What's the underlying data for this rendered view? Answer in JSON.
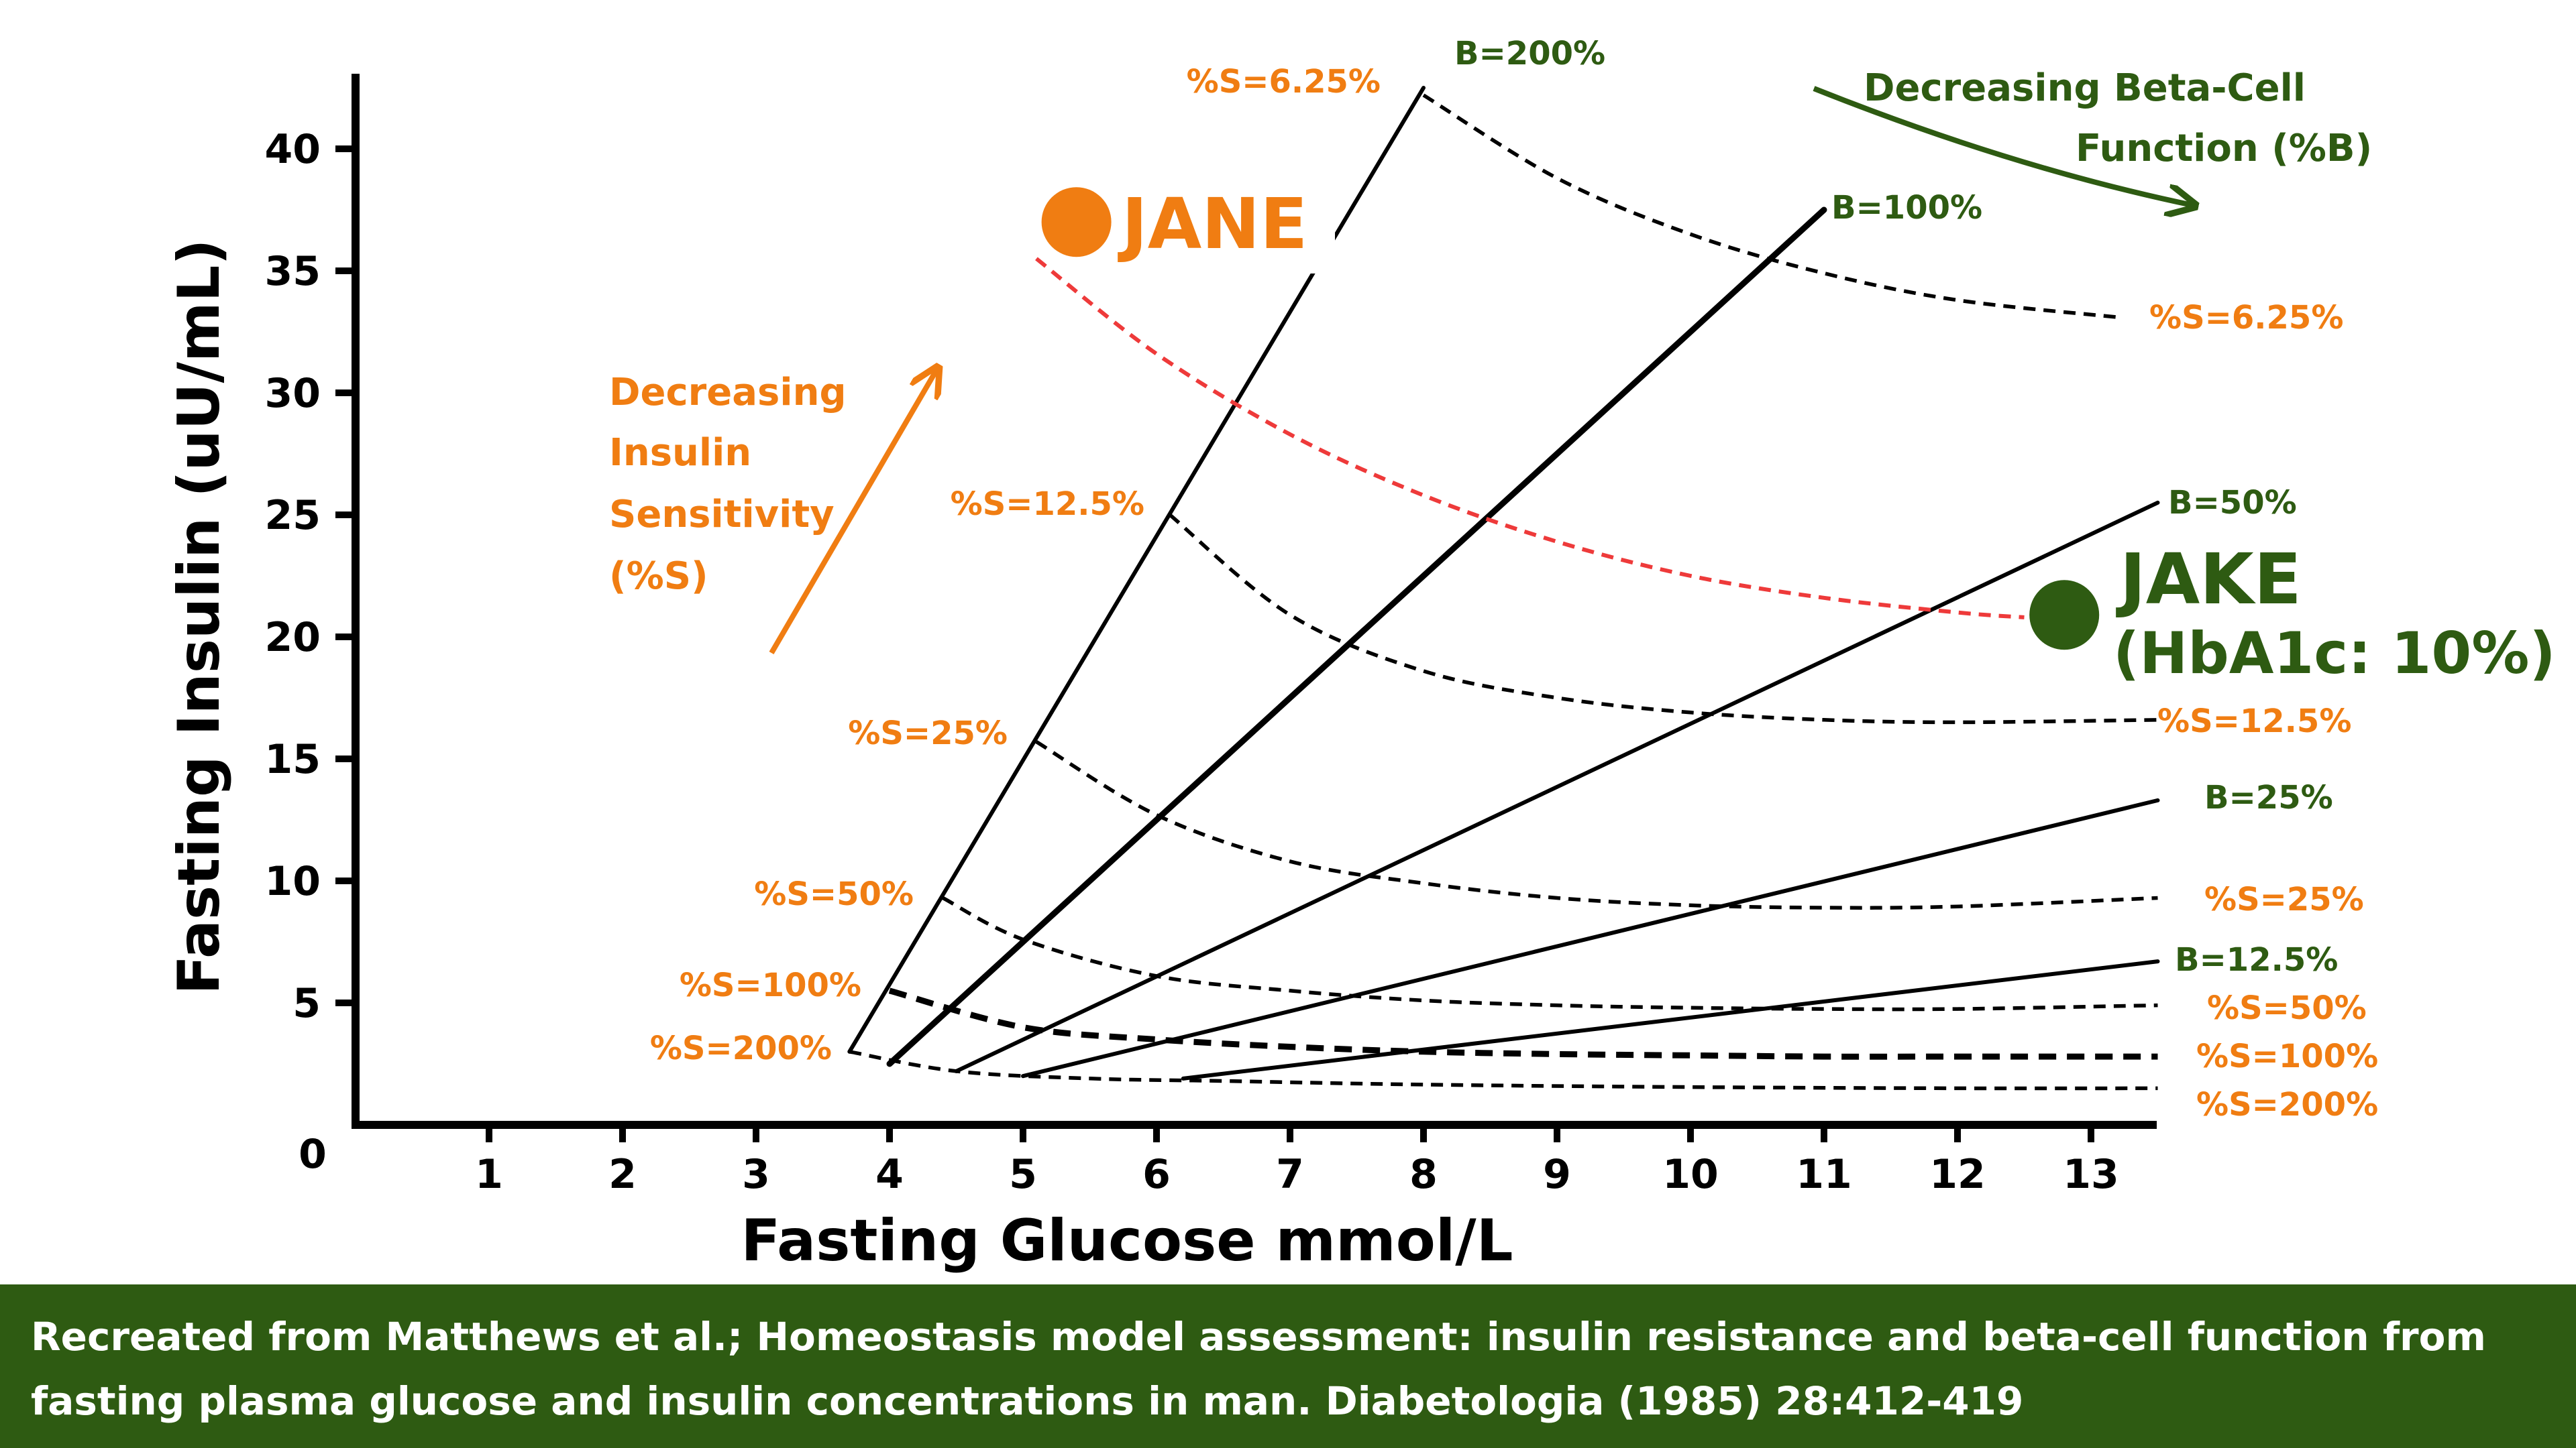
{
  "chart_data": {
    "type": "line",
    "title": "",
    "xlabel": "Fasting Glucose mmol/L",
    "ylabel": "Fasting Insulin (uU/mL)",
    "xlim": [
      0,
      13.5
    ],
    "ylim": [
      0,
      42
    ],
    "x_ticks": [
      1,
      2,
      3,
      4,
      5,
      6,
      7,
      8,
      9,
      10,
      11,
      12,
      13
    ],
    "y_ticks": [
      5,
      10,
      15,
      20,
      25,
      30,
      35,
      40
    ],
    "origin_label": "0",
    "beta_lines": [
      {
        "name": "B=200%",
        "points": [
          [
            3.7,
            3
          ],
          [
            8,
            42.5
          ]
        ]
      },
      {
        "name": "B=100%",
        "points": [
          [
            4,
            2.5
          ],
          [
            11,
            37.5
          ]
        ]
      },
      {
        "name": "B=50%",
        "points": [
          [
            4.5,
            2.2
          ],
          [
            13.5,
            25.5
          ]
        ]
      },
      {
        "name": "B=25%",
        "points": [
          [
            5,
            2
          ],
          [
            13.5,
            13.3
          ]
        ]
      },
      {
        "name": "B=12.5%",
        "points": [
          [
            6.2,
            1.9
          ],
          [
            13.5,
            6.7
          ]
        ]
      }
    ],
    "sensitivity_curves": [
      {
        "name": "%S=6.25%",
        "points": [
          [
            8,
            42.2
          ],
          [
            9,
            38.8
          ],
          [
            10,
            36.5
          ],
          [
            11,
            34.9
          ],
          [
            12,
            33.8
          ],
          [
            13.2,
            33.1
          ]
        ]
      },
      {
        "name": "%S=12.5%",
        "points": [
          [
            6.1,
            25
          ],
          [
            7,
            20.9
          ],
          [
            8,
            18.6
          ],
          [
            9,
            17.5
          ],
          [
            10,
            16.9
          ],
          [
            11,
            16.6
          ],
          [
            12,
            16.5
          ],
          [
            13.5,
            16.6
          ]
        ]
      },
      {
        "name": "%S=25%",
        "points": [
          [
            5.1,
            15.7
          ],
          [
            6,
            12.7
          ],
          [
            7,
            10.8
          ],
          [
            8,
            9.9
          ],
          [
            9,
            9.3
          ],
          [
            10,
            9.0
          ],
          [
            11,
            8.9
          ],
          [
            12,
            8.95
          ],
          [
            13.5,
            9.3
          ]
        ]
      },
      {
        "name": "%S=50%",
        "points": [
          [
            4.4,
            9.3
          ],
          [
            5,
            7.6
          ],
          [
            6,
            6.1
          ],
          [
            7,
            5.5
          ],
          [
            8,
            5.1
          ],
          [
            9,
            4.9
          ],
          [
            10,
            4.8
          ],
          [
            11,
            4.75
          ],
          [
            12,
            4.75
          ],
          [
            13.5,
            4.9
          ]
        ]
      },
      {
        "name": "%S=100%",
        "points": [
          [
            4,
            5.5
          ],
          [
            5,
            4.0
          ],
          [
            6,
            3.5
          ],
          [
            7,
            3.2
          ],
          [
            8,
            3.0
          ],
          [
            9,
            2.9
          ],
          [
            10,
            2.85
          ],
          [
            11,
            2.8
          ],
          [
            12,
            2.8
          ],
          [
            13.5,
            2.8
          ]
        ]
      },
      {
        "name": "%S=200%",
        "points": [
          [
            3.7,
            3
          ],
          [
            4.5,
            2.2
          ],
          [
            5.5,
            1.9
          ],
          [
            6.5,
            1.8
          ],
          [
            8,
            1.65
          ],
          [
            10,
            1.55
          ],
          [
            12,
            1.5
          ],
          [
            13.5,
            1.5
          ]
        ]
      }
    ],
    "red_curve": [
      [
        5.1,
        35.5
      ],
      [
        6,
        31.6
      ],
      [
        7,
        28.3
      ],
      [
        8,
        25.8
      ],
      [
        9,
        23.9
      ],
      [
        10,
        22.5
      ],
      [
        11,
        21.6
      ],
      [
        12,
        21.0
      ],
      [
        12.5,
        20.8
      ]
    ],
    "people": [
      {
        "name": "JANE",
        "glucose": 5.4,
        "insulin": 37.0
      },
      {
        "name": "JAKE",
        "detail": "(HbA1c: 10%)",
        "glucose": 12.8,
        "insulin": 20.9
      }
    ]
  },
  "labels": {
    "beta": {
      "b200": "B=200%",
      "b100": "B=100%",
      "b50": "B=50%",
      "b25": "B=25%",
      "b12": "B=12.5%"
    },
    "sens_left": {
      "s6": "%S=6.25%",
      "s12": "%S=12.5%",
      "s25": "%S=25%",
      "s50": "%S=50%",
      "s100": "%S=100%",
      "s200": "%S=200%"
    },
    "sens_right": {
      "s6": "%S=6.25%",
      "s12": "%S=12.5%",
      "s25": "%S=25%",
      "s50": "%S=50%",
      "s100": "%S=100%",
      "s200": "%S=200%"
    }
  },
  "annotations": {
    "insulin_sensitivity": [
      "Decreasing",
      "Insulin",
      "Sensitivity",
      "(%S)"
    ],
    "beta_function": [
      "Decreasing Beta-Cell",
      "Function (%B)"
    ]
  },
  "colors": {
    "orange": "#f07d12",
    "green": "#2e5b12",
    "red_curve": "#ee3a3a",
    "black": "#000000"
  },
  "footer": {
    "line1": "Recreated from Matthews et al.; Homeostasis model assessment: insulin resistance and beta-cell function from",
    "line2": "fasting plasma glucose and insulin concentrations in man. Diabetologia (1985) 28:412-419"
  }
}
